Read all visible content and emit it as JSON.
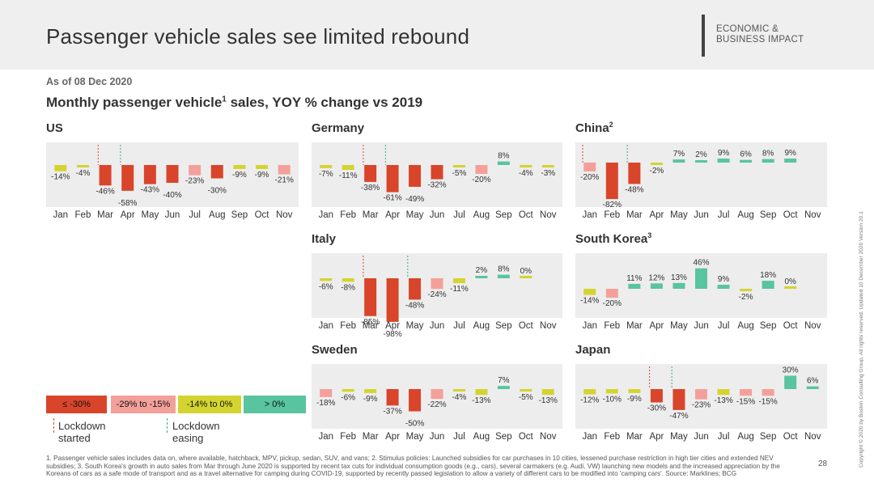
{
  "page": {
    "title": "Passenger vehicle sales see limited rebound",
    "header_tag_line1": "ECONOMIC &",
    "header_tag_line2": "BUSINESS IMPACT",
    "as_of": "As of 08 Dec 2020",
    "subtitle_main": "Monthly passenger vehicle",
    "subtitle_sup": "1",
    "subtitle_rest": " sales, YOY % change vs 2019",
    "footnote": "1. Passenger vehicle sales includes data on, where available, hatchback, MPV, pickup, sedan, SUV, and vans;  2. Stimulus policies: Launched subsidies for car purchases in 10 cities, lessened purchase restriction in high tier cities and extended NEV subsidies;  3. South Korea's growth in auto sales from Mar through June 2020 is supported by recent tax cuts for individual consumption goods (e.g., cars), several carmakers (e.g. Audi, VW) launching new models and the increased appreciation by the Koreans of cars as a safe mode of transport and as a travel alternative for camping during COVID-19, supported by recently passed legislation to allow a variety of different cars to be modified into 'camping cars'.  Source: Marklines; BCG",
    "page_number": "28",
    "copyright": "Copyright © 2020 by Boston Consulting Group. All rights reserved. Updated 10 December 2020 Version 20.1"
  },
  "colors": {
    "le_minus30": "#d9452a",
    "minus29_to_minus15": "#f4a09a",
    "minus14_to_0": "#d4d430",
    "gt0": "#58c4a0",
    "lockdown_started": "#d9452a",
    "lockdown_easing": "#3aa88a",
    "chart_bg": "#ededed"
  },
  "legend": {
    "buckets": [
      {
        "label": "≤ -30%",
        "color": "#d9452a"
      },
      {
        "label": "-29% to -15%",
        "color": "#f4a09a"
      },
      {
        "label": "-14% to 0%",
        "color": "#d4d430"
      },
      {
        "label": "> 0%",
        "color": "#58c4a0"
      }
    ],
    "lockdown_started": "Lockdown started",
    "lockdown_easing": "Lockdown easing"
  },
  "chart_data": [
    {
      "type": "bar",
      "title": "US",
      "title_sup": "",
      "categories": [
        "Jan",
        "Feb",
        "Mar",
        "Apr",
        "May",
        "Jun",
        "Jul",
        "Aug",
        "Sep",
        "Oct",
        "Nov"
      ],
      "values": [
        -14,
        -4,
        -46,
        -58,
        -43,
        -40,
        -23,
        -30,
        -9,
        -9,
        -21
      ],
      "lockdown_started": "Mar",
      "lockdown_easing": "Apr"
    },
    {
      "type": "bar",
      "title": "Germany",
      "title_sup": "",
      "categories": [
        "Jan",
        "Feb",
        "Mar",
        "Apr",
        "May",
        "Jun",
        "Jul",
        "Aug",
        "Sep",
        "Oct",
        "Nov"
      ],
      "values": [
        -7,
        -11,
        -38,
        -61,
        -49,
        -32,
        -5,
        -20,
        8,
        -4,
        -3
      ],
      "lockdown_started": "Mar",
      "lockdown_easing": "Apr"
    },
    {
      "type": "bar",
      "title": "China",
      "title_sup": "2",
      "categories": [
        "Jan",
        "Feb",
        "Mar",
        "Apr",
        "May",
        "Jun",
        "Jul",
        "Aug",
        "Sep",
        "Oct",
        "Nov"
      ],
      "values": [
        -20,
        -82,
        -48,
        -2,
        7,
        2,
        9,
        6,
        8,
        9,
        null
      ],
      "lockdown_started": "Jan",
      "lockdown_easing": "Mar"
    },
    {
      "type": "bar",
      "title": "Italy",
      "title_sup": "",
      "categories": [
        "Jan",
        "Feb",
        "Mar",
        "Apr",
        "May",
        "Jun",
        "Jul",
        "Aug",
        "Sep",
        "Oct",
        "Nov"
      ],
      "values": [
        -6,
        -8,
        -85,
        -98,
        -48,
        -24,
        -11,
        2,
        8,
        0,
        null
      ],
      "lockdown_started": "Mar",
      "lockdown_easing": "May"
    },
    {
      "type": "bar",
      "title": "South Korea",
      "title_sup": "3",
      "categories": [
        "Jan",
        "Feb",
        "Mar",
        "Apr",
        "May",
        "Jun",
        "Jul",
        "Aug",
        "Sep",
        "Oct",
        "Nov"
      ],
      "values": [
        -14,
        -20,
        11,
        12,
        13,
        46,
        9,
        -2,
        18,
        0,
        null
      ],
      "lockdown_started": null,
      "lockdown_easing": null
    },
    {
      "type": "bar",
      "title": "Sweden",
      "title_sup": "",
      "categories": [
        "Jan",
        "Feb",
        "Mar",
        "Apr",
        "May",
        "Jun",
        "Jul",
        "Aug",
        "Sep",
        "Oct",
        "Nov"
      ],
      "values": [
        -18,
        -6,
        -9,
        -37,
        -50,
        -22,
        -4,
        -13,
        7,
        -5,
        -13
      ],
      "lockdown_started": null,
      "lockdown_easing": null
    },
    {
      "type": "bar",
      "title": "Japan",
      "title_sup": "",
      "categories": [
        "Jan",
        "Feb",
        "Mar",
        "Apr",
        "May",
        "Jun",
        "Jul",
        "Aug",
        "Sep",
        "Oct",
        "Nov"
      ],
      "values": [
        -12,
        -10,
        -9,
        -30,
        -47,
        -23,
        -13,
        -15,
        -15,
        30,
        6
      ],
      "lockdown_started": "Apr",
      "lockdown_easing": "May"
    }
  ]
}
